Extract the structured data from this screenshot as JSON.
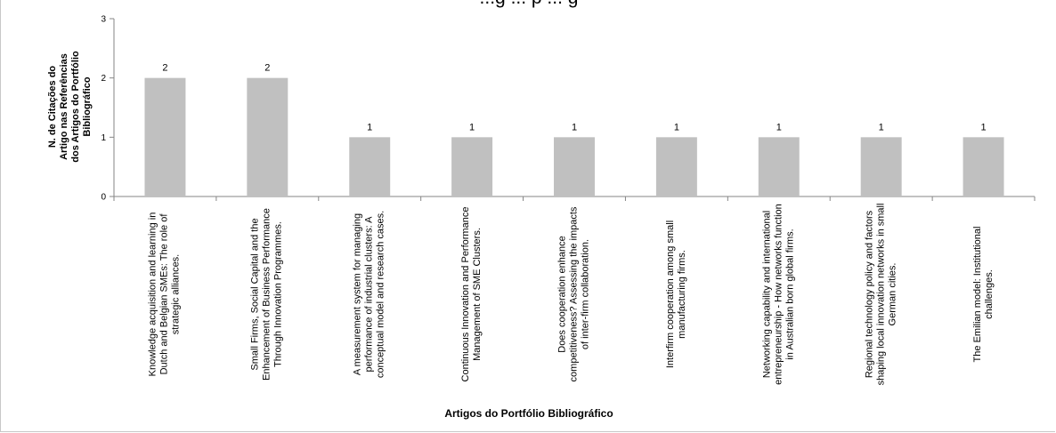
{
  "chart_data": {
    "type": "bar",
    "title": "...g ... p ... g",
    "ylabel": "N. de Citações do\nArtigo nas Referências\ndos Artigos do Portfólio\nBibliográfico",
    "xlabel": "Artigos do Portfólio Bibliográfico",
    "ylim": [
      0,
      3
    ],
    "yticks": [
      0,
      1,
      2,
      3
    ],
    "grid": false,
    "legend": "none",
    "bar_color": "#c0c0c0",
    "categories": [
      "Knowledge acquisition and learning in Dutch and Belgian SMEs: The role of strategic alliances.",
      "Small Firms, Social Capital and the Enhancement of Business Performance Through Innovation Programmes.",
      "A measurement system for managing performance of industrial clusters: A conceptual model and research cases.",
      "Continuous Innovation and Performance Management of SME Clusters.",
      "Does cooperation enhance competitiveness? Assessing the impacts of inter-firm collaboration.",
      "Interfirm cooperation among small manufacturing firms.",
      "Networking capability and international entrepreneurship - How networks function in Australian born global firms.",
      "Regional technology policy and factors shaping local innovation networks in small German cities.",
      "The Emilian model: Institutional challenges."
    ],
    "values": [
      2,
      2,
      1,
      1,
      1,
      1,
      1,
      1,
      1
    ]
  }
}
